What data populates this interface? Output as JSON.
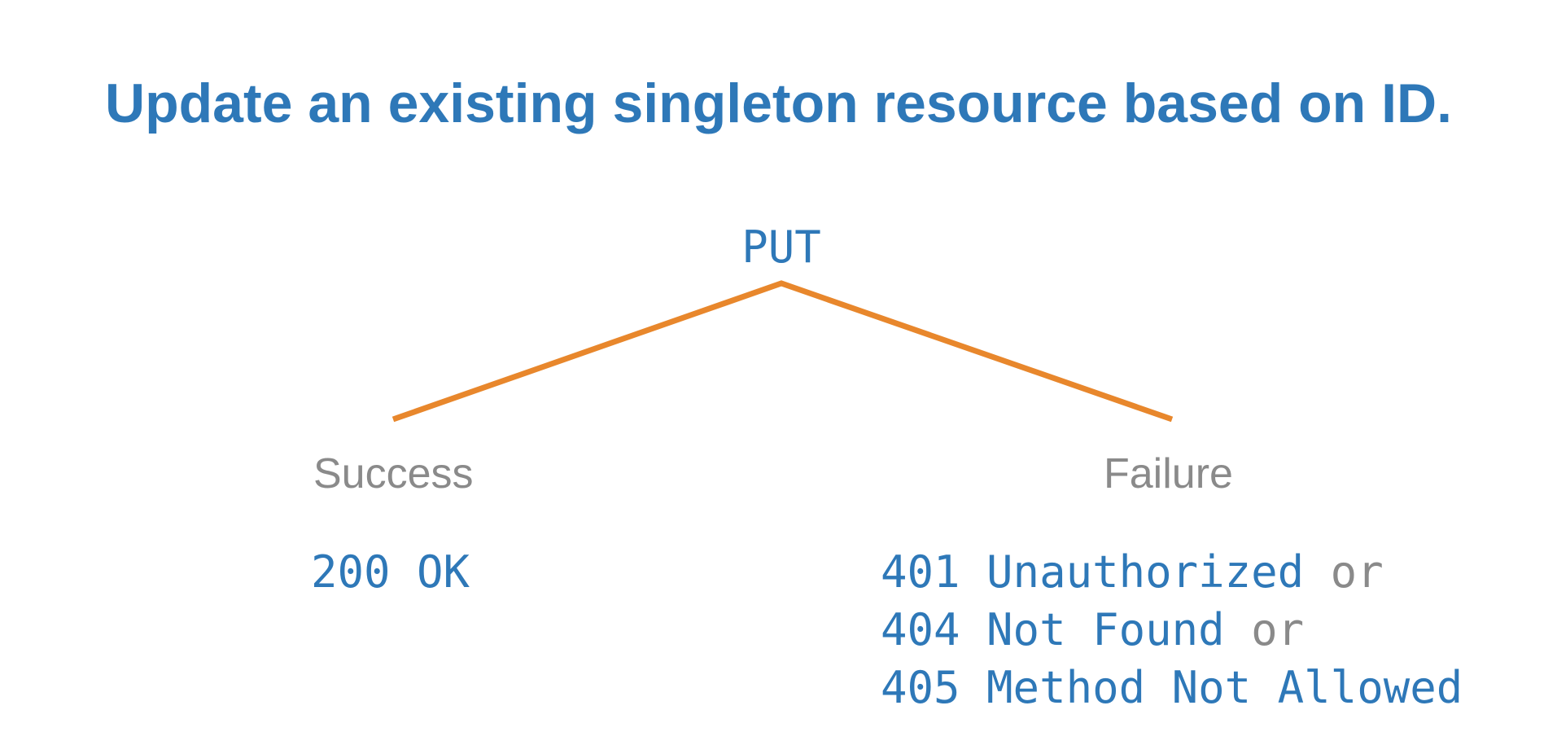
{
  "title": "Update an existing singleton resource based on ID.",
  "method": "PUT",
  "colors": {
    "title": "#2e78b8",
    "code": "#2e78b8",
    "label": "#8a8a8a",
    "branch_line": "#e8872c"
  },
  "success": {
    "label": "Success",
    "codes": [
      {
        "code": "200 OK",
        "connector": ""
      }
    ]
  },
  "failure": {
    "label": "Failure",
    "codes": [
      {
        "code": "401 Unauthorized",
        "connector": " or"
      },
      {
        "code": "404 Not Found",
        "connector": " or"
      },
      {
        "code": "405 Method Not Allowed",
        "connector": ""
      }
    ]
  }
}
